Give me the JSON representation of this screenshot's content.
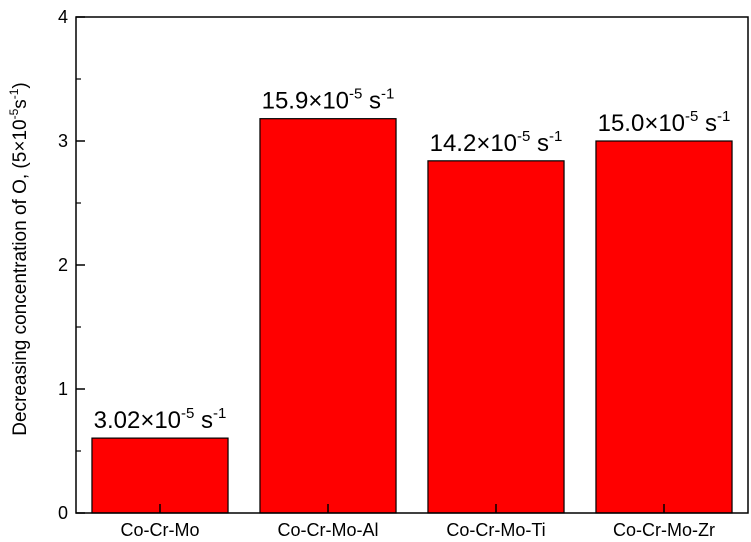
{
  "chart_data": {
    "type": "bar",
    "categories": [
      "Co-Cr-Mo",
      "Co-Cr-Mo-Al",
      "Co-Cr-Mo-Ti",
      "Co-Cr-Mo-Zr"
    ],
    "values": [
      0.604,
      3.18,
      2.84,
      3.0
    ],
    "data_labels": [
      {
        "mantissa": "3.02",
        "times": "×",
        "base": "10",
        "exp": "-5",
        "unit": "s",
        "unit_exp": "-1"
      },
      {
        "mantissa": "15.9",
        "times": "×",
        "base": "10",
        "exp": "-5",
        "unit": "s",
        "unit_exp": "-1"
      },
      {
        "mantissa": "14.2",
        "times": "×",
        "base": "10",
        "exp": "-5",
        "unit": "s",
        "unit_exp": "-1"
      },
      {
        "mantissa": "15.0",
        "times": "×",
        "base": "10",
        "exp": "-5",
        "unit": "s",
        "unit_exp": "-1"
      }
    ],
    "ylabel": {
      "main": "Decreasing concentration of O,",
      "paren_open": "(5",
      "times": "×",
      "base": "10",
      "exp": "-5",
      "unit": "s",
      "unit_exp": "-1",
      "paren_close": ")"
    },
    "xlabel": "",
    "title": "",
    "ylim": [
      0,
      4
    ],
    "yticks": [
      "0",
      "1",
      "2",
      "3",
      "4"
    ],
    "bar_color": "#ff0000",
    "grid": false,
    "legend": "none"
  }
}
